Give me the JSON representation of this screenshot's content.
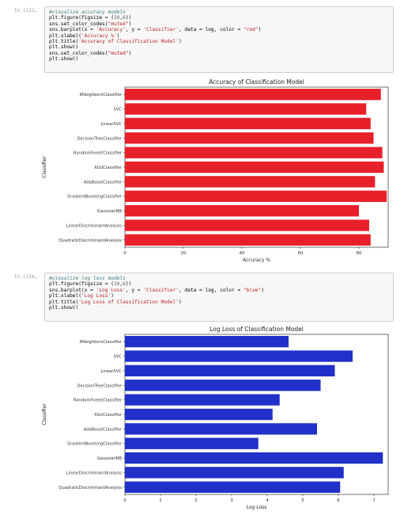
{
  "cells": [
    {
      "prompt": "In [133…",
      "code": [
        [
          [
            "cm",
            "#visualize accuracy models"
          ]
        ],
        [
          [
            "n",
            "plt.figure(figsize = ("
          ],
          [
            "nu",
            "10"
          ],
          [
            "n",
            ","
          ],
          [
            "nu",
            "6"
          ],
          [
            "n",
            "))"
          ]
        ],
        [
          [
            "n",
            "sns.set_color_codes("
          ],
          [
            "st",
            "\"muted\""
          ],
          [
            "n",
            ")"
          ]
        ],
        [
          [
            "n",
            "sns.barplot(x = "
          ],
          [
            "st",
            "'Accuracy'"
          ],
          [
            "n",
            ", y = "
          ],
          [
            "st",
            "'Classifier'"
          ],
          [
            "n",
            ", data = log, color = "
          ],
          [
            "st",
            "\"red\""
          ],
          [
            "n",
            ")"
          ]
        ],
        [
          [
            "n",
            "plt.xlabel("
          ],
          [
            "st",
            "'Accuracy %'"
          ],
          [
            "n",
            ")"
          ]
        ],
        [
          [
            "n",
            "plt.title("
          ],
          [
            "st",
            "'Accuracy of Classification Model'"
          ],
          [
            "n",
            ")"
          ]
        ],
        [
          [
            "n",
            "plt.show()"
          ]
        ],
        [
          [
            "n",
            "sns.set_color_codes("
          ],
          [
            "st",
            "\"muted\""
          ],
          [
            "n",
            ")"
          ]
        ],
        [
          [
            "n",
            "plt.show()"
          ]
        ]
      ]
    },
    {
      "prompt": "In [134…",
      "code": [
        [
          [
            "cm",
            "#visualize log loss models"
          ]
        ],
        [
          [
            "n",
            "plt.figure(figsize = ("
          ],
          [
            "nu",
            "10"
          ],
          [
            "n",
            ","
          ],
          [
            "nu",
            "6"
          ],
          [
            "n",
            "))"
          ]
        ],
        [
          [
            "n",
            "sns.barplot(x = "
          ],
          [
            "st",
            "'Log Loss'"
          ],
          [
            "n",
            ", y = "
          ],
          [
            "st",
            "'Classifier'"
          ],
          [
            "n",
            ", data = log, color = "
          ],
          [
            "st",
            "\"blue\""
          ],
          [
            "n",
            ")"
          ]
        ],
        [
          [
            "n",
            "plt.xlabel("
          ],
          [
            "st",
            "'Log Loss'"
          ],
          [
            "n",
            ")"
          ]
        ],
        [
          [
            "n",
            "plt.title("
          ],
          [
            "st",
            "'Log Loss of Classification Model'"
          ],
          [
            "n",
            ")"
          ]
        ],
        [
          [
            "n",
            "plt.show()"
          ]
        ]
      ]
    }
  ],
  "chart_data": [
    {
      "type": "bar",
      "orientation": "horizontal",
      "title": "Accuracy of Classification Model",
      "xlabel": "Accuracy %",
      "ylabel": "Classifier",
      "color": "#e8202a",
      "xlim": [
        0,
        90
      ],
      "xticks": [
        0,
        20,
        40,
        60,
        80
      ],
      "categories": [
        "KNeighborsClassifier",
        "SVC",
        "LinearSVC",
        "DecisionTreeClassifier",
        "RandomForestClassifier",
        "XGUClassifier",
        "AdaBoostClassifier",
        "GradientBoostingClassifier",
        "GaussianNB",
        "LinearDiscriminantAnalysis",
        "QuadraticDiscriminantAnalysis"
      ],
      "values": [
        87.5,
        82.5,
        84,
        85,
        88,
        88.5,
        85.5,
        89.5,
        80,
        83.5,
        84
      ],
      "grid": false
    },
    {
      "type": "bar",
      "orientation": "horizontal",
      "title": "Log Loss of Classification Model",
      "xlabel": "Log Loss",
      "ylabel": "Classifier",
      "color": "#2030c8",
      "xlim": [
        0,
        7.4
      ],
      "xticks": [
        0,
        1,
        2,
        3,
        4,
        5,
        6,
        7
      ],
      "categories": [
        "KNeighborsClassifier",
        "SVC",
        "LinearSVC",
        "DecisionTreeClassifier",
        "RandomForestClassifier",
        "XGUClassifier",
        "AdaBoostClassifier",
        "GradientBoostingClassifier",
        "GaussianNB",
        "LinearDiscriminantAnalysis",
        "QuadraticDiscriminantAnalysis"
      ],
      "values": [
        4.6,
        6.4,
        5.9,
        5.5,
        4.35,
        4.15,
        5.4,
        3.75,
        7.25,
        6.15,
        6.05
      ],
      "grid": false
    }
  ]
}
